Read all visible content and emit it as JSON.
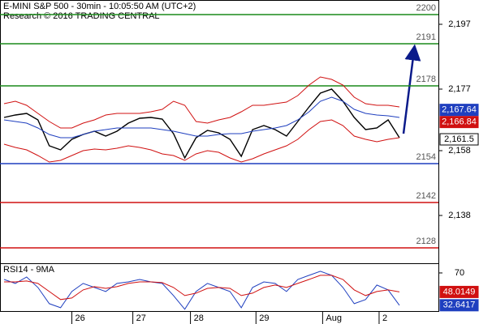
{
  "chart_data": [
    {
      "type": "line",
      "title": "E-MINI S&P 500 - 30min - 10:05:50 AM (UTC+2)",
      "subtitle": "Research © 2016 TRADING CENTRAL",
      "xlim": [
        0,
        35
      ],
      "ylim": [
        2123.25,
        2204.5
      ],
      "yticks": [
        {
          "value": 2197,
          "label": "2,197"
        },
        {
          "value": 2177,
          "label": "2,177"
        },
        {
          "value": 2158,
          "label": "2,158"
        },
        {
          "value": 2138,
          "label": "2,138"
        }
      ],
      "series": [
        {
          "color": "#000000",
          "values": [
            2168.25,
            2169,
            2169.5,
            2167.5,
            2159.5,
            2158.25,
            2161.5,
            2163,
            2164,
            2162.5,
            2164,
            2166.5,
            2168,
            2168.25,
            2167.75,
            2163.25,
            2155.75,
            2162,
            2164.25,
            2163.5,
            2161.5,
            2156.25,
            2164.5,
            2165.75,
            2164.5,
            2162.5,
            2167,
            2171.5,
            2175.75,
            2177,
            2173.25,
            2168.25,
            2164.5,
            2165,
            2167.5,
            2162
          ]
        },
        {
          "color": "#d01010",
          "values": [
            2172.5,
            2173.25,
            2172,
            2169.5,
            2167,
            2165,
            2165,
            2166.5,
            2167.5,
            2169,
            2169.5,
            2169.5,
            2169.5,
            2170,
            2170.75,
            2173.25,
            2172,
            2167,
            2166.5,
            2167.5,
            2168.25,
            2170,
            2172,
            2172,
            2172.5,
            2173,
            2175,
            2178.25,
            2180.75,
            2180,
            2178.25,
            2174.5,
            2172.5,
            2172,
            2172,
            2171.5
          ]
        },
        {
          "color": "#d01010",
          "values": [
            2160,
            2159,
            2158.25,
            2156.5,
            2154.5,
            2155,
            2156.5,
            2158,
            2158.5,
            2158.25,
            2158.75,
            2159.5,
            2159,
            2158.25,
            2157,
            2156.5,
            2155,
            2157,
            2158,
            2157.5,
            2155.75,
            2154.5,
            2155.5,
            2157,
            2158.25,
            2159.5,
            2161.5,
            2164.5,
            2167,
            2167.5,
            2165.75,
            2162.5,
            2161.5,
            2160.75,
            2161.5,
            2162
          ]
        },
        {
          "color": "#1f3fbf",
          "values": [
            2167.5,
            2167,
            2166.5,
            2165,
            2163,
            2162,
            2162,
            2163,
            2164,
            2164.5,
            2165,
            2165,
            2165,
            2165,
            2164.5,
            2164,
            2163.25,
            2162.5,
            2162.5,
            2163,
            2163.25,
            2163.25,
            2164,
            2164.5,
            2165,
            2165.75,
            2167.5,
            2170,
            2173.25,
            2174.5,
            2173.25,
            2170.75,
            2169.5,
            2169,
            2168.75,
            2168.25
          ]
        }
      ],
      "levels": {
        "values": [
          2200,
          2191,
          2178,
          2154,
          2142,
          2128
        ],
        "colors": [
          "#1a8a1a",
          "#1a8a1a",
          "#1a8a1a",
          "#1f3fbf",
          "#d01010",
          "#d01010"
        ]
      },
      "last_values": {
        "values": [
          2167.64,
          2166.84,
          2161.5
        ],
        "value_labels": [
          "2,167.64",
          "2,166.84",
          "2,161.5"
        ],
        "colors": [
          "#1f3fbf",
          "#d01010",
          "#ffffff"
        ]
      }
    },
    {
      "type": "line",
      "title": "RSI14 - 9MA",
      "xlim": [
        0,
        35
      ],
      "xticks": [
        {
          "value": 6,
          "label": "26"
        },
        {
          "value": 11.4,
          "label": "27"
        },
        {
          "value": 16.5,
          "label": "28"
        },
        {
          "value": 22.3,
          "label": "29"
        },
        {
          "value": 28.2,
          "label": "Aug"
        },
        {
          "value": 33.2,
          "label": "2"
        }
      ],
      "ylim": [
        25,
        81.2
      ],
      "yticks": [
        70
      ],
      "series": [
        {
          "color": "#1f3fbf",
          "values": [
            62.5,
            57.9,
            65.3,
            53.2,
            34.5,
            29.8,
            48.5,
            57.9,
            53.2,
            48.5,
            57.9,
            59.7,
            62.5,
            59.7,
            57.9,
            43.8,
            28,
            48.5,
            57.9,
            53.2,
            48.5,
            29.8,
            53.2,
            59.7,
            57.9,
            48.5,
            62.5,
            67.2,
            71.9,
            67.2,
            53.2,
            34.5,
            39.2,
            56,
            50.4,
            32.6
          ]
        },
        {
          "color": "#d01010",
          "values": [
            59.7,
            59.7,
            60.7,
            57.9,
            48.5,
            39.2,
            41,
            50.4,
            54.1,
            52.2,
            54.1,
            57.9,
            59.7,
            59.7,
            58.8,
            53.2,
            43.8,
            46.6,
            52.2,
            53.2,
            52.2,
            43.8,
            46.6,
            53.2,
            56,
            53.2,
            57.9,
            62.5,
            67.2,
            67.2,
            62.5,
            50.4,
            43.8,
            48.5,
            50.4,
            48
          ]
        }
      ],
      "last_values": {
        "values": [
          48.0149,
          32.6417
        ],
        "colors": [
          "#d01010",
          "#1f3fbf"
        ]
      }
    }
  ]
}
